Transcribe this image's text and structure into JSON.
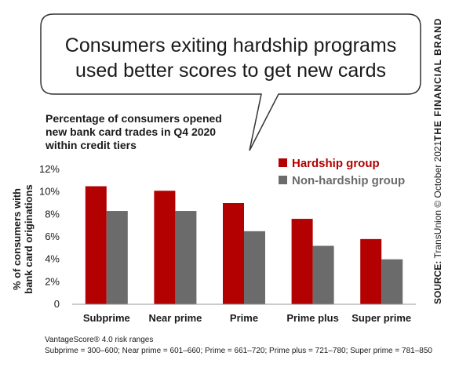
{
  "headline": {
    "line1": "Consumers exiting hardship programs",
    "line2": "used better scores to get new cards"
  },
  "side_credit": {
    "source_label": "SOURCE:",
    "source_text": " TransUnion © October 2021",
    "brand": "THE FINANCIAL BRAND"
  },
  "footnote": {
    "line1": "VantageScore® 4.0 risk ranges",
    "line2": "Subprime = 300–600; Near prime = 601–660; Prime = 661–720; Prime plus = 721–780; Super prime = 781–850"
  },
  "colors": {
    "hardship": "#b30000",
    "non_hardship": "#6b6b6b",
    "axis": "#999999",
    "bubble_stroke": "#333333"
  },
  "chart_data": {
    "type": "bar",
    "title_lines": [
      "Percentage of consumers opened",
      "new bank card trades in Q4 2020",
      "within credit tiers"
    ],
    "ylabel_lines": [
      "% of consumers with",
      "bank card originations"
    ],
    "xlabel": "",
    "categories": [
      "Subprime",
      "Near prime",
      "Prime",
      "Prime plus",
      "Super prime"
    ],
    "series": [
      {
        "name": "Hardship group",
        "values": [
          10.5,
          10.1,
          9.0,
          7.6,
          5.8
        ]
      },
      {
        "name": "Non-hardship group",
        "values": [
          8.3,
          8.3,
          6.5,
          5.2,
          4.0
        ]
      }
    ],
    "ylim": [
      0,
      12
    ],
    "yticks": [
      "0",
      "2%",
      "4%",
      "6%",
      "8%",
      "10%",
      "12%"
    ],
    "grid": false,
    "legend_position": "top-right"
  }
}
